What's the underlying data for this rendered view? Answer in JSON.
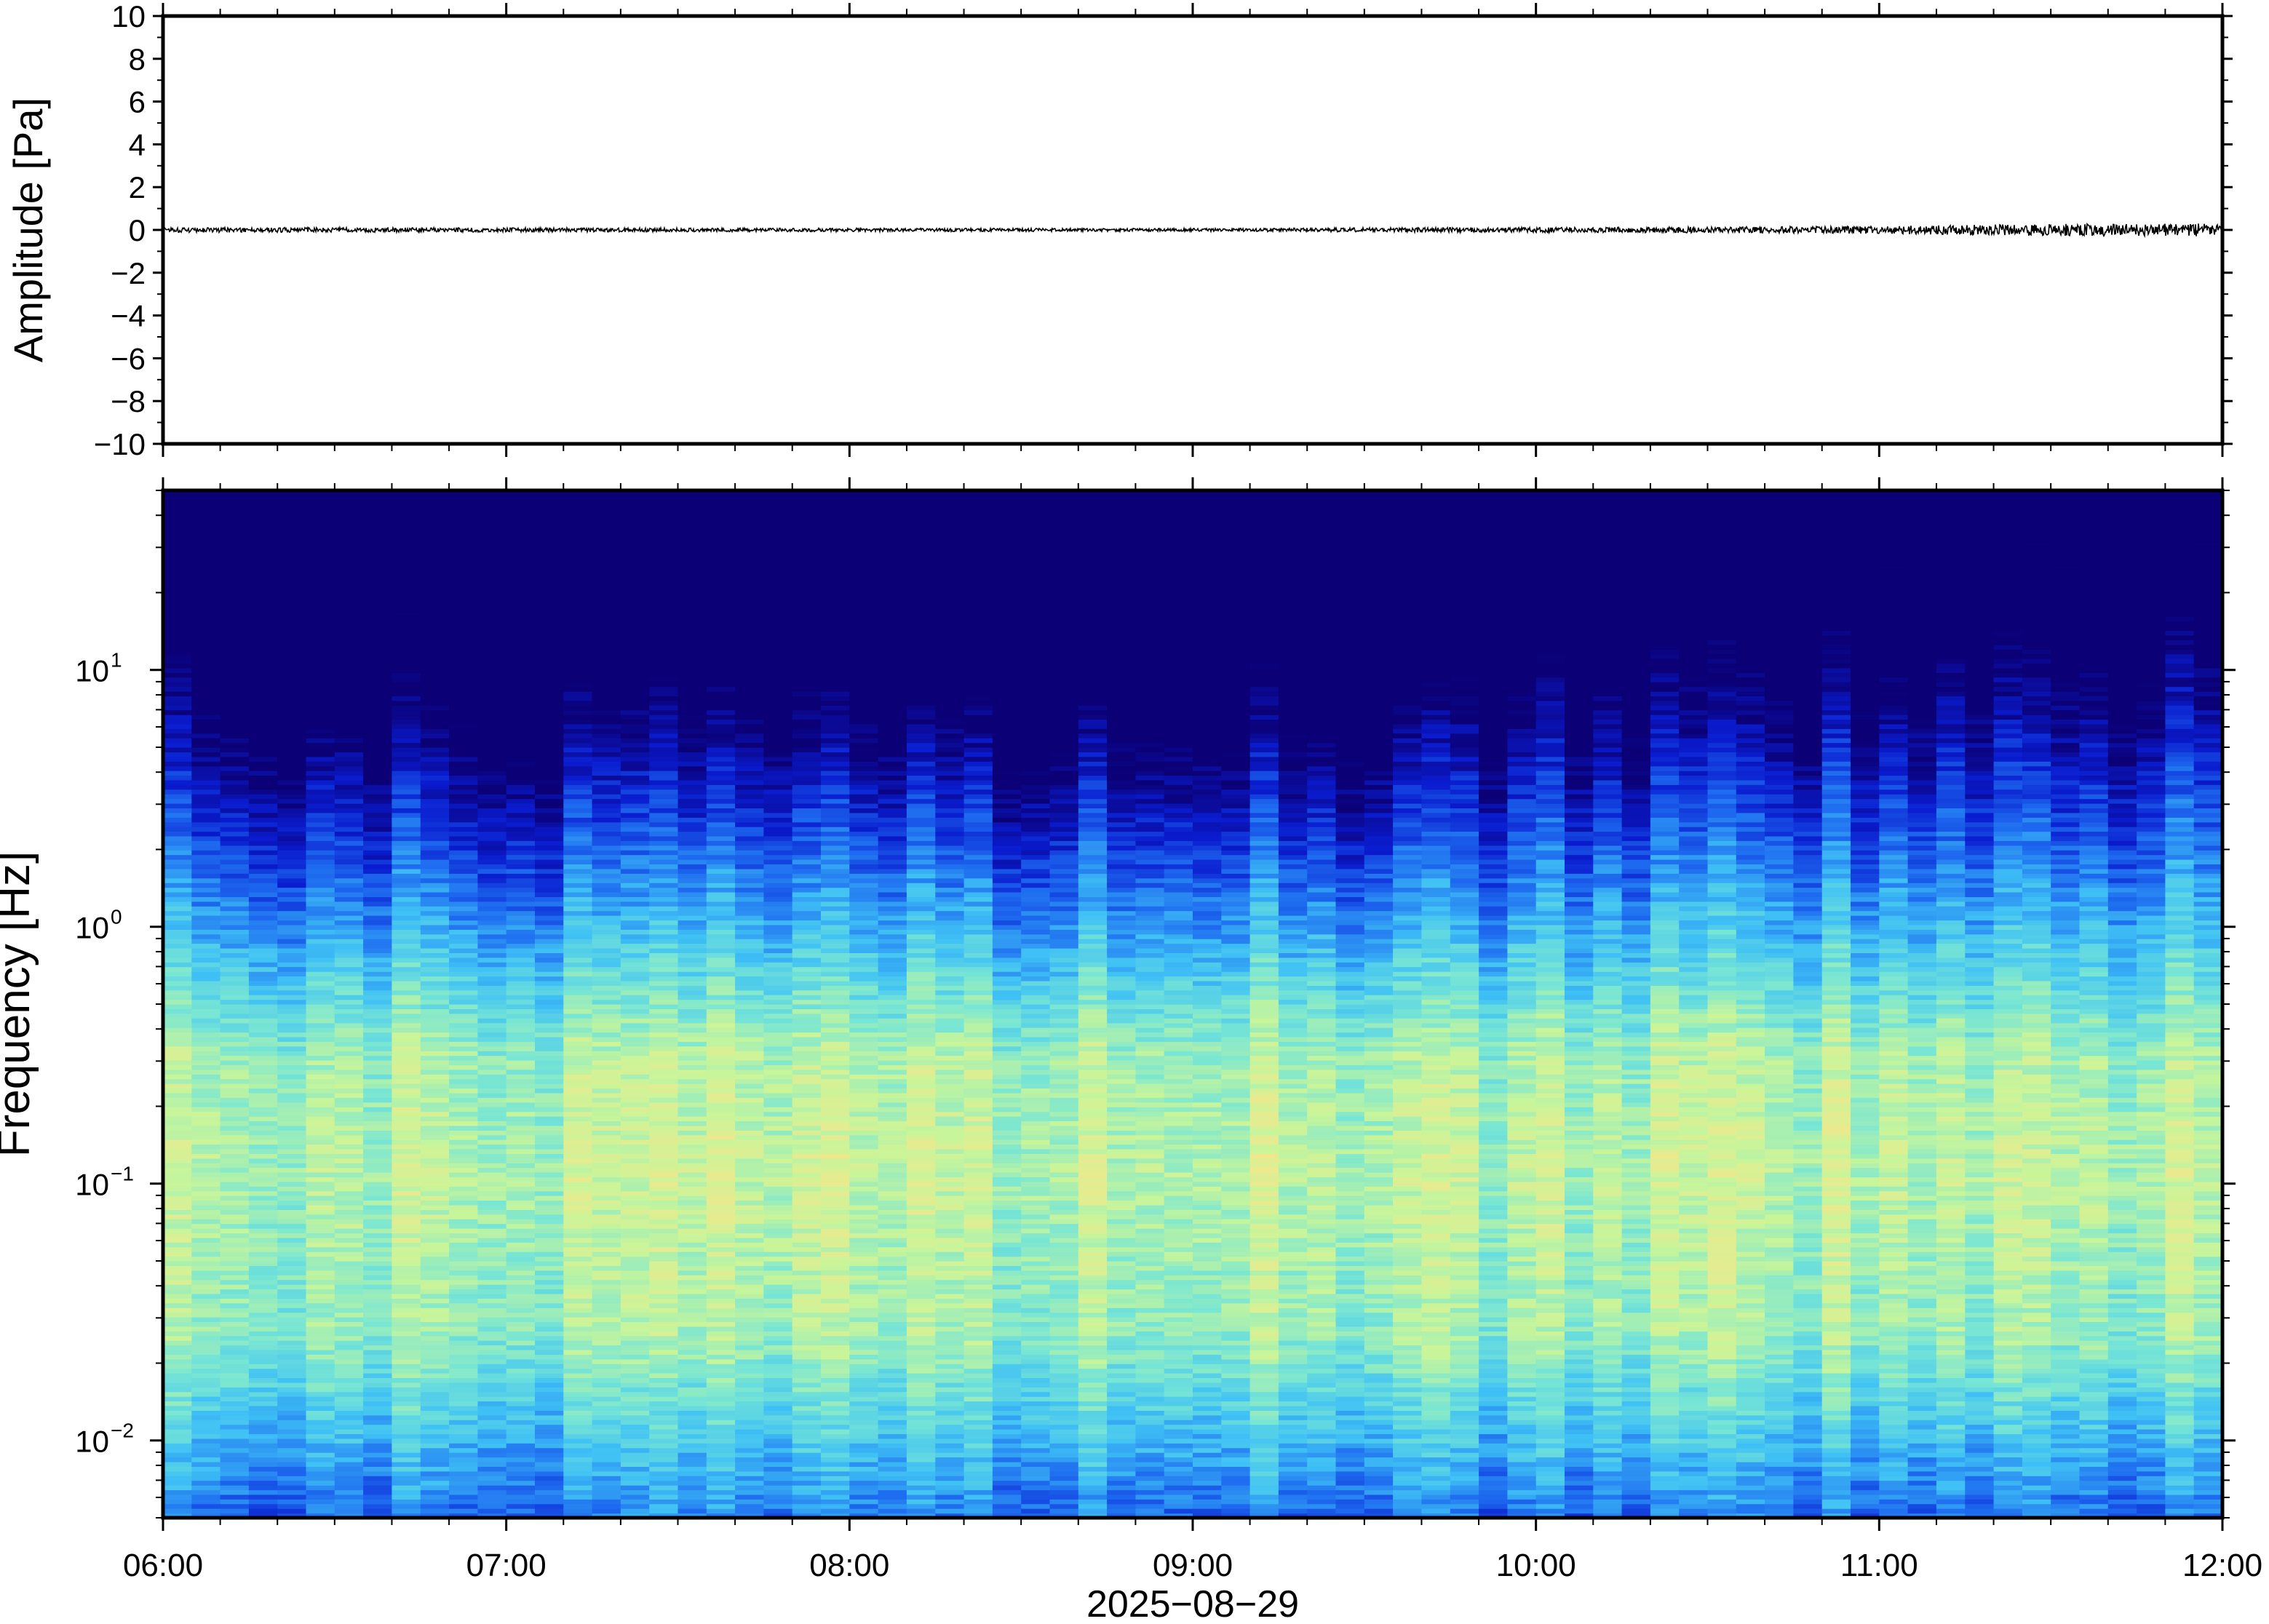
{
  "chart_data": [
    {
      "type": "line",
      "name": "waveform",
      "ylabel": "Amplitude [Pa]",
      "ylim": [
        -10,
        10
      ],
      "ytick_values": [
        10,
        8,
        6,
        4,
        2,
        0,
        -2,
        -4,
        -6,
        -8,
        -10
      ],
      "ytick_labels": [
        "10",
        "8",
        "6",
        "4",
        "2",
        "0",
        "−2",
        "−4",
        "−6",
        "−8",
        "−10"
      ],
      "xlim": [
        "06:00",
        "12:00"
      ],
      "baseline": 0,
      "noise_envelope_pa": {
        "x": [
          "06:00",
          "07:00",
          "08:00",
          "09:00",
          "09:30",
          "10:00",
          "10:30",
          "11:00",
          "11:30",
          "12:00"
        ],
        "y": [
          0.12,
          0.1,
          0.08,
          0.07,
          0.1,
          0.12,
          0.14,
          0.18,
          0.28,
          0.3
        ]
      }
    },
    {
      "type": "heatmap",
      "name": "spectrogram",
      "ylabel": "Frequency [Hz]",
      "yscale": "log",
      "ylim": [
        0.005,
        50
      ],
      "ytick_values": [
        10,
        1,
        0.1,
        0.01
      ],
      "ytick_base": [
        "10",
        "10",
        "10",
        "10"
      ],
      "ytick_exponents": [
        "1",
        "0",
        "−1",
        "−2"
      ],
      "xlim": [
        "06:00",
        "12:00"
      ],
      "xtick_labels": [
        "06:00",
        "07:00",
        "08:00",
        "09:00",
        "10:00",
        "11:00",
        "12:00"
      ],
      "xlabel": "2025−08−29",
      "colormap": [
        "#0b0075",
        "#0a1ccf",
        "#1e6cf0",
        "#3fc1f5",
        "#78e6d4",
        "#c8f59a",
        "#f5e68a"
      ],
      "upper_cutoff_hz": {
        "x": [
          "06:00",
          "06:30",
          "07:00",
          "07:30",
          "08:00",
          "08:30",
          "09:00",
          "09:30",
          "10:00",
          "10:30",
          "11:00",
          "11:30",
          "12:00"
        ],
        "y": [
          12,
          9,
          9,
          8,
          8,
          8,
          8,
          8,
          12,
          12,
          15,
          18,
          20
        ]
      }
    }
  ]
}
